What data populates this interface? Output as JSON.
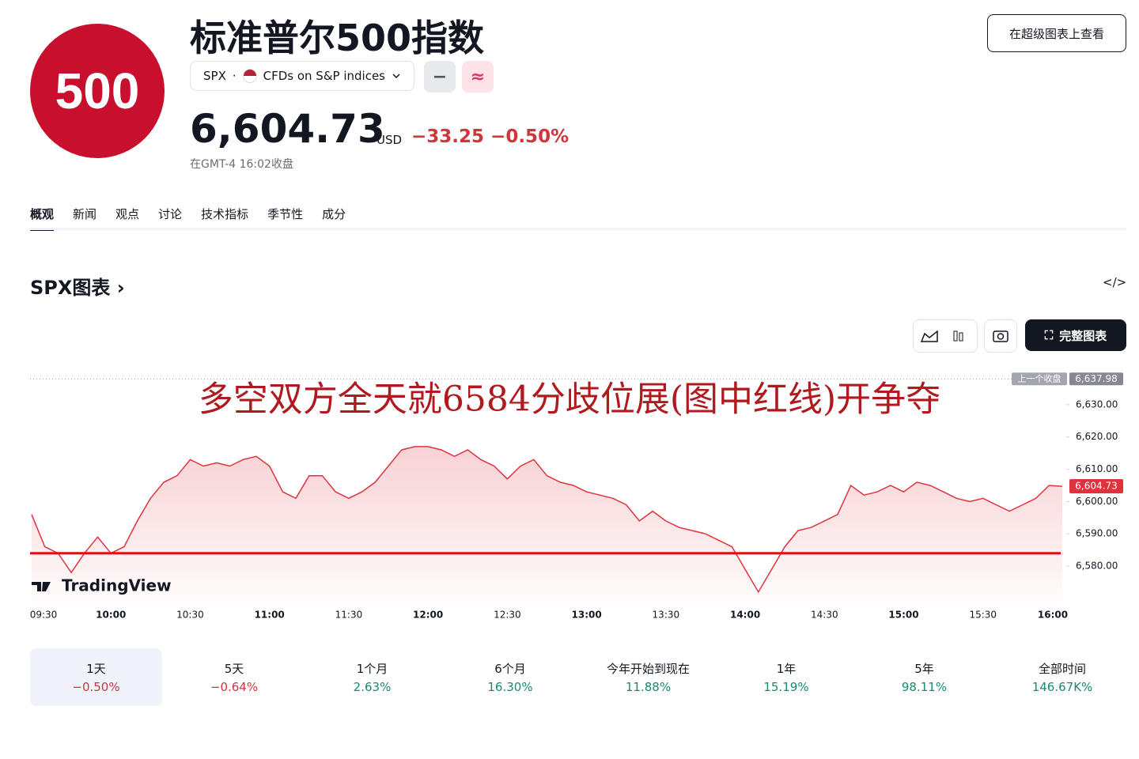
{
  "header": {
    "logo": "500",
    "title": "标准普尔500指数",
    "view_button": "在超级图表上查看",
    "symbol": "SPX",
    "exchange": "CFDs on S&P indices",
    "price": "6,604.73",
    "currency": "USD",
    "change": "−33.25",
    "change_pct": "−0.50%",
    "close_time": "在GMT-4 16:02收盘"
  },
  "tabs": [
    "概观",
    "新闻",
    "观点",
    "讨论",
    "技术指标",
    "季节性",
    "成分"
  ],
  "section_title": "SPX图表",
  "full_chart_button": "完整图表",
  "chart_data": {
    "type": "area",
    "annotation": "多空双方全天就6584分歧位展(图中红线)开争夺",
    "logo_text": "TradingView",
    "color": "#e0323c",
    "categories": [
      "09:30",
      null,
      null,
      null,
      null,
      null,
      "10:00",
      null,
      null,
      null,
      null,
      null,
      "10:30",
      null,
      null,
      null,
      null,
      null,
      "11:00",
      null,
      null,
      null,
      null,
      null,
      "11:30",
      null,
      null,
      null,
      null,
      null,
      "12:00",
      null,
      null,
      null,
      null,
      null,
      "12:30",
      null,
      null,
      null,
      null,
      null,
      "13:00",
      null,
      null,
      null,
      null,
      null,
      "13:30",
      null,
      null,
      null,
      null,
      null,
      "14:00",
      null,
      null,
      null,
      null,
      null,
      "14:30",
      null,
      null,
      null,
      null,
      null,
      "15:00",
      null,
      null,
      null,
      null,
      null,
      "15:30",
      null,
      null,
      null,
      null,
      null,
      "16:00"
    ],
    "values": [
      6596,
      6586,
      6584,
      6578,
      6584,
      6589,
      6584,
      6586,
      6594,
      6601,
      6606,
      6608,
      6613,
      6611,
      6612,
      6611,
      6613,
      6614,
      6611,
      6603,
      6601,
      6608,
      6608,
      6603,
      6601,
      6603,
      6606,
      6611,
      6616,
      6617,
      6617,
      6616,
      6614,
      6616,
      6613,
      6611,
      6607,
      6611,
      6613,
      6608,
      6606,
      6605,
      6603,
      6602,
      6601,
      6599,
      6594,
      6597,
      6594,
      6592,
      6591,
      6590,
      6588,
      6586,
      6579,
      6572,
      6579,
      6586,
      6591,
      6592,
      6594,
      6596,
      6605,
      6602,
      6603,
      6605,
      6603,
      6606,
      6605,
      6603,
      6601,
      6600,
      6601,
      6599,
      6597,
      6599,
      6601,
      6605,
      6604.73
    ],
    "ylim": [
      6569,
      6640
    ],
    "yticks": [
      {
        "value": 6580,
        "label": "6,580.00"
      },
      {
        "value": 6590,
        "label": "6,590.00"
      },
      {
        "value": 6600,
        "label": "6,600.00"
      },
      {
        "value": 6610,
        "label": "6,610.00"
      },
      {
        "value": 6620,
        "label": "6,620.00"
      },
      {
        "value": 6630,
        "label": "6,630.00"
      }
    ],
    "previous_close": {
      "name": "上一个收盘",
      "value": 6637.98,
      "label": "6,637.98"
    },
    "last_price": {
      "value": 6604.73,
      "label": "6,604.73"
    },
    "support_line": {
      "value": 6584,
      "color": "#e01010"
    }
  },
  "periods": [
    {
      "label": "1天",
      "change": "−0.50%",
      "color": "#d1343b"
    },
    {
      "label": "5天",
      "change": "−0.64%",
      "color": "#d1343b"
    },
    {
      "label": "1个月",
      "change": "2.63%",
      "color": "#1a8a6e"
    },
    {
      "label": "6个月",
      "change": "16.30%",
      "color": "#1a8a6e"
    },
    {
      "label": "今年开始到现在",
      "change": "11.88%",
      "color": "#1a8a6e"
    },
    {
      "label": "1年",
      "change": "15.19%",
      "color": "#1a8a6e"
    },
    {
      "label": "5年",
      "change": "98.11%",
      "color": "#1a8a6e"
    },
    {
      "label": "全部时间",
      "change": "146.67K%",
      "color": "#1a8a6e"
    }
  ]
}
